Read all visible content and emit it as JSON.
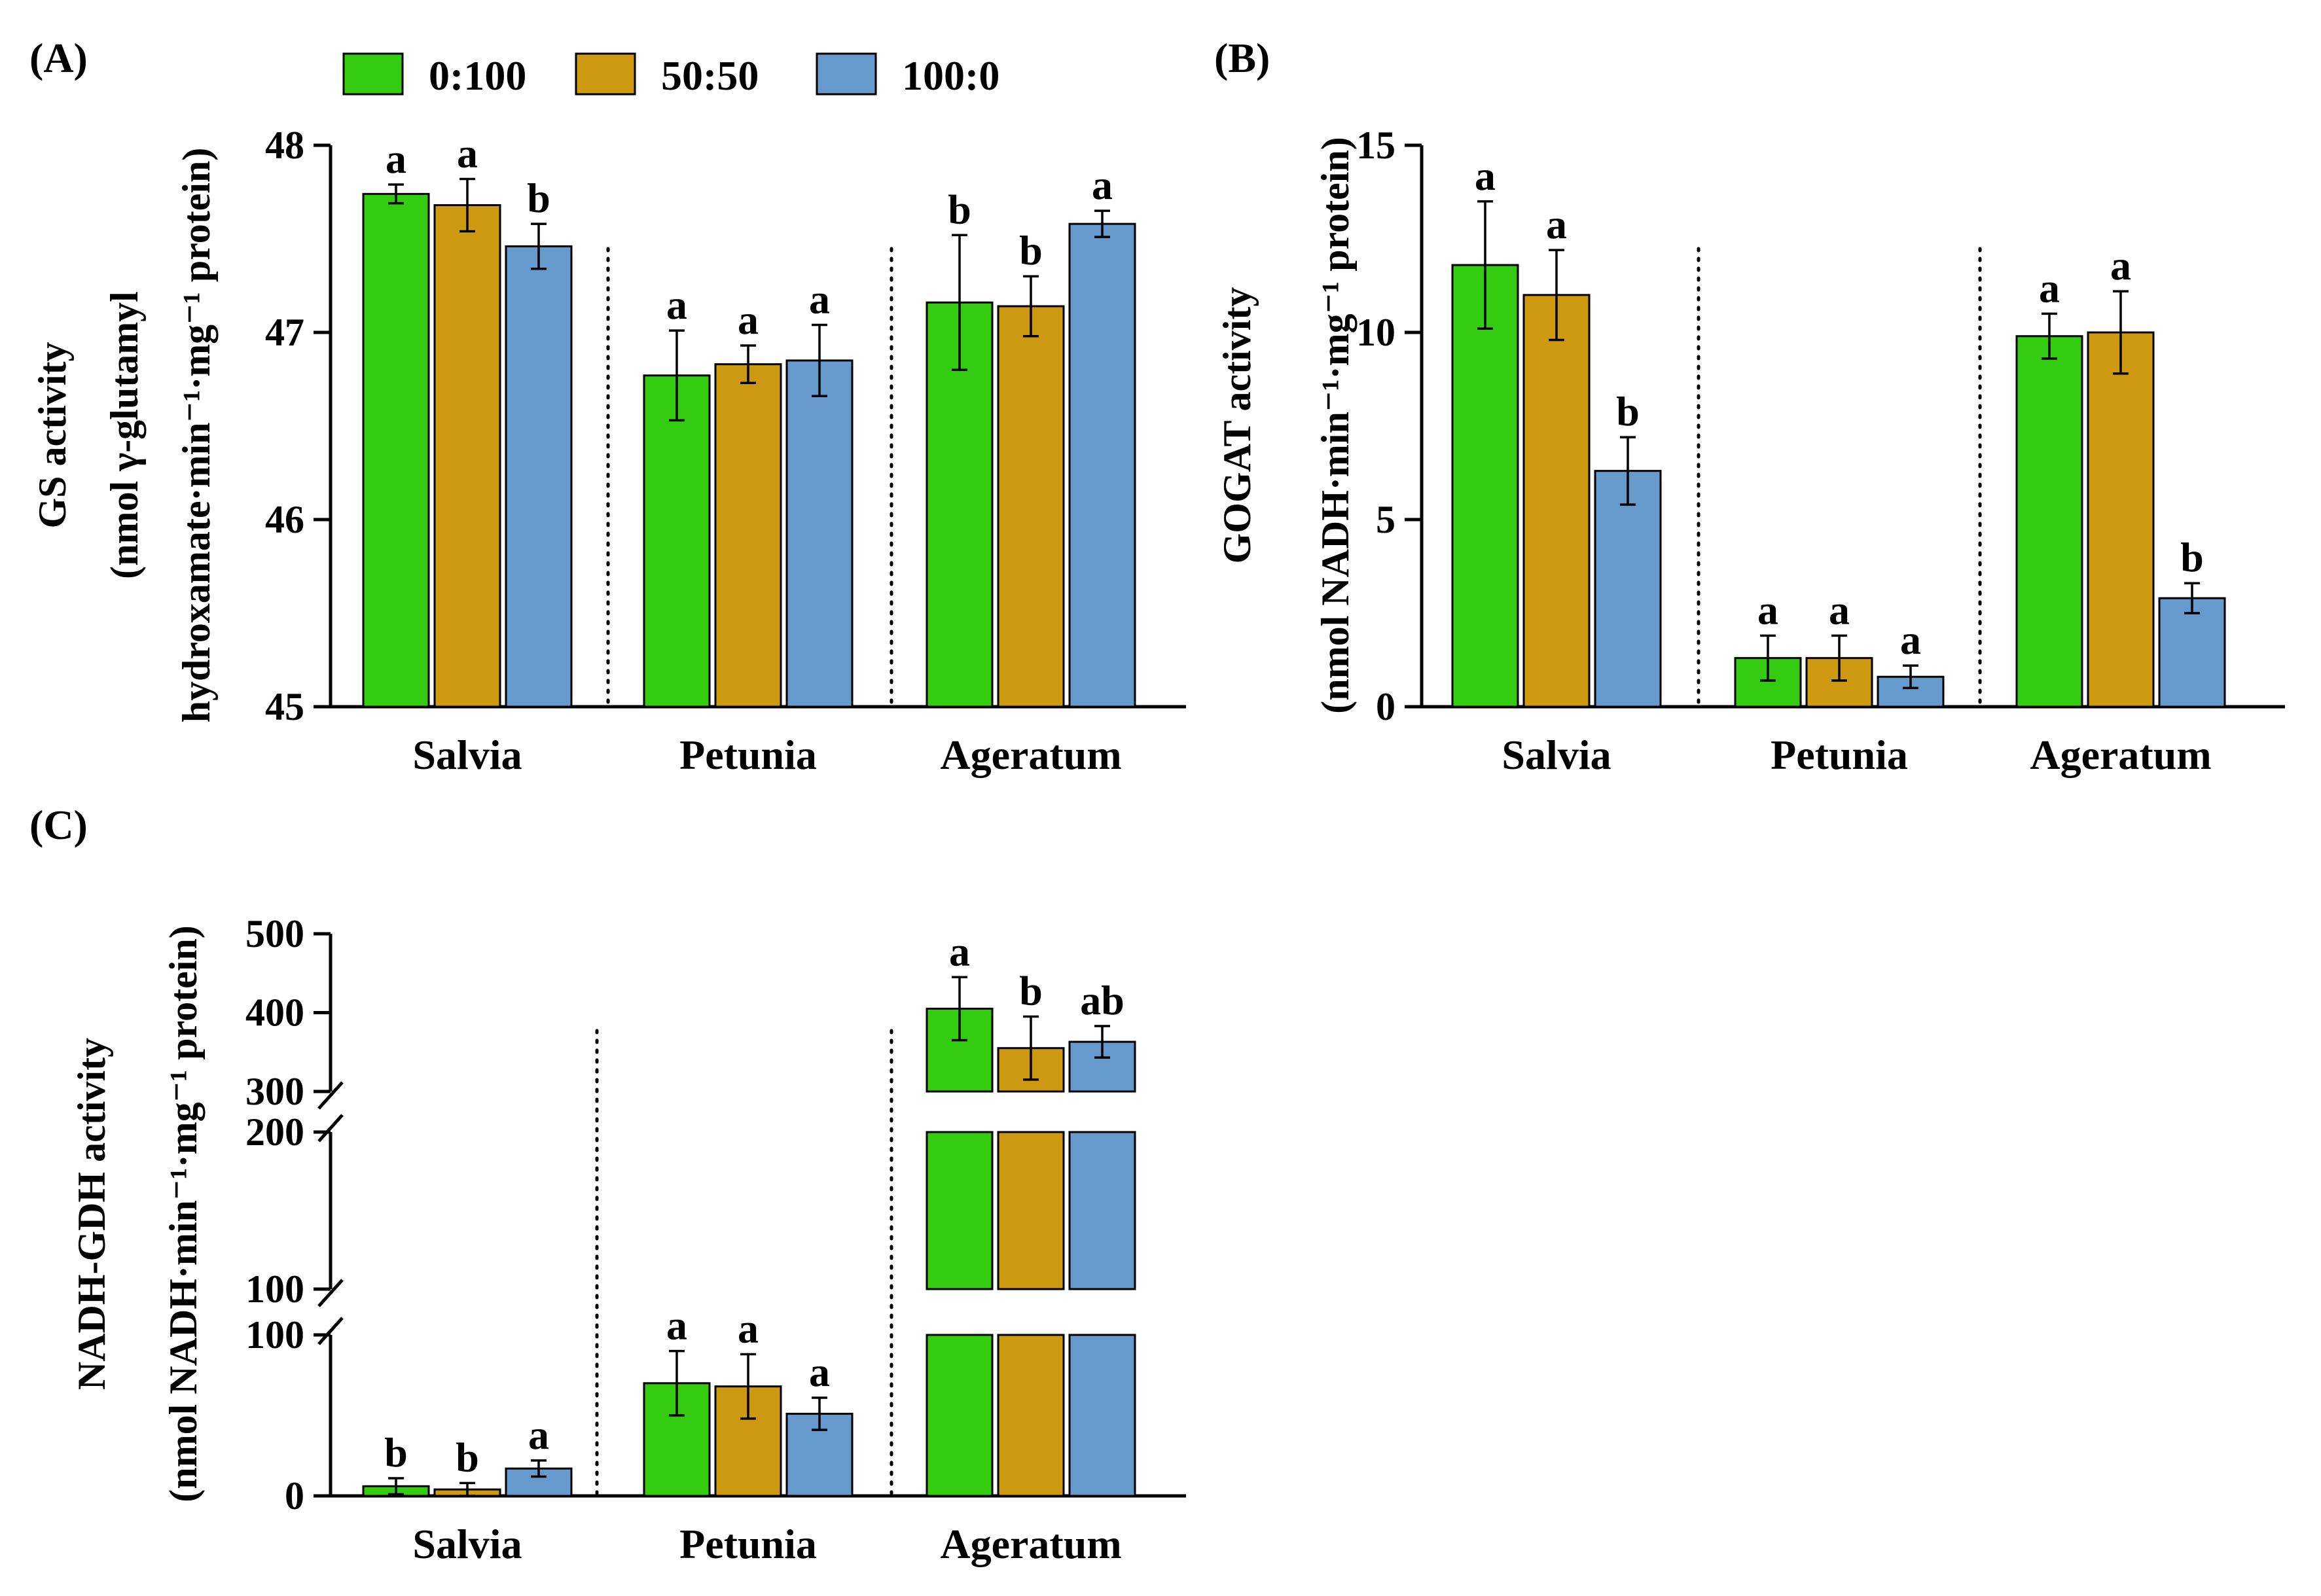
{
  "legend": {
    "items": [
      {
        "label": "0:100",
        "color": "#33cc11"
      },
      {
        "label": "50:50",
        "color": "#cc9911"
      },
      {
        "label": "100:0",
        "color": "#6699cc"
      }
    ]
  },
  "chart_data": [
    {
      "panel": "(A)",
      "type": "bar",
      "categories": [
        "Salvia",
        "Petunia",
        "Ageratum"
      ],
      "series": [
        {
          "name": "0:100",
          "values": [
            47.74,
            46.77,
            47.16
          ],
          "errors": [
            0.05,
            0.24,
            0.36
          ],
          "letters": [
            "a",
            "a",
            "b"
          ]
        },
        {
          "name": "50:50",
          "values": [
            47.68,
            46.83,
            47.14
          ],
          "errors": [
            0.14,
            0.1,
            0.16
          ],
          "letters": [
            "a",
            "a",
            "b"
          ]
        },
        {
          "name": "100:0",
          "values": [
            47.46,
            46.85,
            47.58
          ],
          "errors": [
            0.12,
            0.19,
            0.07
          ],
          "letters": [
            "b",
            "a",
            "a"
          ]
        }
      ],
      "ylabel_lines": [
        "GS activity",
        "(nmol γ-glutamyl",
        "hydroxamate·min⁻¹·mg⁻¹ protein)"
      ],
      "ylim": [
        45,
        48
      ],
      "yticks": [
        "45",
        "46",
        "47",
        "48"
      ]
    },
    {
      "panel": "(B)",
      "type": "bar",
      "categories": [
        "Salvia",
        "Petunia",
        "Ageratum"
      ],
      "series": [
        {
          "name": "0:100",
          "values": [
            11.8,
            1.3,
            9.9
          ],
          "errors": [
            1.7,
            0.6,
            0.6
          ],
          "letters": [
            "a",
            "a",
            "a"
          ]
        },
        {
          "name": "50:50",
          "values": [
            11.0,
            1.3,
            10.0
          ],
          "errors": [
            1.2,
            0.6,
            1.1
          ],
          "letters": [
            "a",
            "a",
            "a"
          ]
        },
        {
          "name": "100:0",
          "values": [
            6.3,
            0.8,
            2.9
          ],
          "errors": [
            0.9,
            0.3,
            0.4
          ],
          "letters": [
            "b",
            "a",
            "b"
          ]
        }
      ],
      "ylabel_lines": [
        "GOGAT activity",
        "(nmol NADH·min⁻¹·mg⁻¹ protein)"
      ],
      "ylim": [
        0,
        15
      ],
      "yticks": [
        "0",
        "5",
        "10",
        "15"
      ]
    },
    {
      "panel": "(C)",
      "type": "bar",
      "categories": [
        "Salvia",
        "Petunia",
        "Ageratum"
      ],
      "series": [
        {
          "name": "0:100",
          "values": [
            6,
            70,
            405
          ],
          "errors": [
            5,
            20,
            40
          ],
          "letters": [
            "b",
            "a",
            "a"
          ]
        },
        {
          "name": "50:50",
          "values": [
            4,
            68,
            355
          ],
          "errors": [
            4,
            20,
            40
          ],
          "letters": [
            "b",
            "a",
            "b"
          ]
        },
        {
          "name": "100:0",
          "values": [
            17,
            51,
            363
          ],
          "errors": [
            5,
            10,
            20
          ],
          "letters": [
            "a",
            "a",
            "ab"
          ]
        }
      ],
      "ylabel_lines": [
        "NADH-GDH activity",
        "(nmol NADH·min⁻¹·mg⁻¹ protein)"
      ],
      "broken_axis": {
        "segments": [
          {
            "range": [
              0,
              100
            ],
            "ticks": [
              "0",
              "100"
            ]
          },
          {
            "range": [
              100,
              200
            ],
            "ticks": [
              "100",
              "200"
            ]
          },
          {
            "range": [
              300,
              500
            ],
            "ticks": [
              "300",
              "400",
              "500"
            ]
          }
        ]
      }
    }
  ]
}
